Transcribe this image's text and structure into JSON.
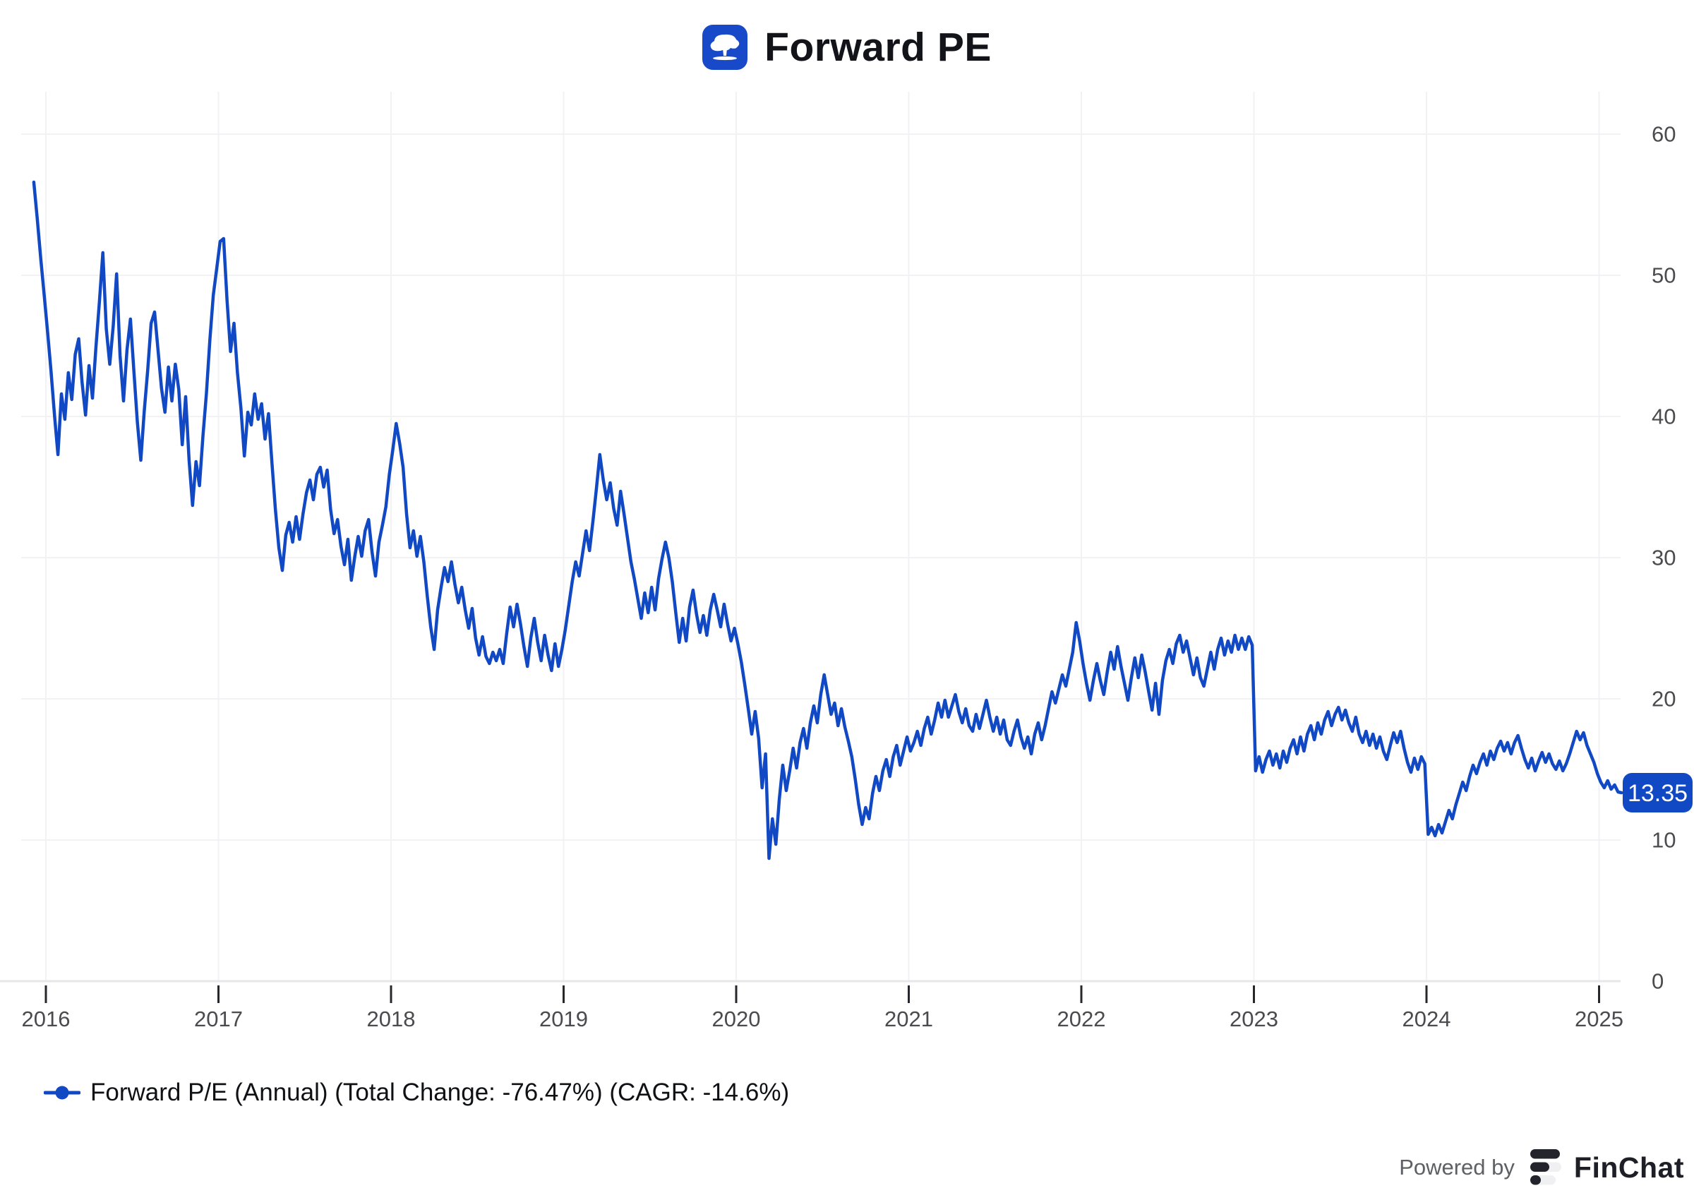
{
  "header": {
    "title": "Forward PE"
  },
  "legend": {
    "label": "Forward P/E (Annual) (Total Change: -76.47%) (CAGR: -14.6%)"
  },
  "footer": {
    "powered_by": "Powered by",
    "brand": "FinChat"
  },
  "chart_data": {
    "type": "line",
    "title": "Forward PE",
    "xlabel": "",
    "ylabel": "",
    "grid": true,
    "legend_position": "bottom-left",
    "y_axis_side": "right",
    "x_ticks": [
      2016,
      2017,
      2018,
      2019,
      2020,
      2021,
      2022,
      2023,
      2024,
      2025
    ],
    "y_ticks": [
      0,
      10,
      20,
      30,
      40,
      50,
      60
    ],
    "x_range": [
      2015.9,
      2025.22
    ],
    "y_range": [
      0,
      63
    ],
    "colors": {
      "grid": "#f2f2f5",
      "axis_line": "#e7e7ea",
      "tick": "#26272b",
      "axis_label": "#4b4b4f",
      "accent_blue": "#1148c4"
    },
    "series": [
      {
        "name": "Forward P/E (Annual) (Total Change: -76.47%) (CAGR: -14.6%)",
        "color": "#1148c4",
        "total_change_pct": -76.47,
        "cagr_pct": -14.6,
        "last_value_label": "13.35",
        "x_start": 2015.93,
        "x_step": 0.02,
        "values": [
          56.6,
          54.0,
          51.2,
          48.6,
          46.0,
          43.2,
          40.1,
          37.3,
          41.6,
          39.8,
          43.1,
          41.2,
          44.4,
          45.5,
          42.4,
          40.1,
          43.6,
          41.3,
          44.9,
          48.1,
          51.6,
          46.2,
          43.7,
          46.4,
          50.1,
          44.3,
          41.1,
          44.7,
          46.9,
          43.2,
          39.6,
          36.9,
          40.4,
          43.3,
          46.6,
          47.4,
          44.7,
          42.0,
          40.3,
          43.5,
          41.1,
          43.7,
          41.9,
          38.0,
          41.4,
          36.9,
          33.7,
          36.8,
          35.1,
          38.6,
          41.6,
          45.4,
          48.6,
          50.5,
          52.4,
          52.6,
          48.2,
          44.6,
          46.6,
          43.1,
          40.6,
          37.2,
          40.3,
          39.4,
          41.6,
          39.8,
          40.9,
          38.4,
          40.2,
          36.7,
          33.4,
          30.7,
          29.1,
          31.6,
          32.5,
          31.1,
          32.9,
          31.3,
          33.1,
          34.6,
          35.5,
          34.1,
          35.9,
          36.4,
          35.0,
          36.2,
          33.4,
          31.7,
          32.7,
          30.8,
          29.5,
          31.3,
          28.4,
          30.1,
          31.5,
          30.1,
          31.9,
          32.7,
          30.4,
          28.7,
          31.1,
          32.3,
          33.6,
          35.9,
          37.6,
          39.5,
          38.1,
          36.4,
          33.1,
          30.7,
          31.9,
          30.1,
          31.5,
          29.7,
          27.3,
          25.1,
          23.5,
          26.3,
          27.9,
          29.3,
          28.3,
          29.7,
          28.1,
          26.8,
          27.9,
          26.3,
          25.0,
          26.4,
          24.3,
          23.1,
          24.4,
          23.0,
          22.5,
          23.3,
          22.7,
          23.5,
          22.5,
          24.6,
          26.5,
          25.1,
          26.7,
          25.3,
          23.7,
          22.3,
          24.3,
          25.7,
          24.0,
          22.7,
          24.5,
          23.1,
          22.0,
          23.9,
          22.3,
          23.5,
          24.9,
          26.6,
          28.3,
          29.7,
          28.7,
          30.3,
          31.9,
          30.5,
          32.6,
          34.9,
          37.3,
          35.5,
          34.1,
          35.3,
          33.5,
          32.3,
          34.7,
          33.1,
          31.4,
          29.7,
          28.5,
          27.1,
          25.7,
          27.5,
          26.1,
          27.9,
          26.3,
          28.5,
          29.9,
          31.1,
          30.0,
          28.3,
          26.1,
          24.0,
          25.7,
          24.1,
          26.5,
          27.7,
          26.0,
          24.7,
          25.9,
          24.5,
          26.3,
          27.4,
          26.3,
          25.1,
          26.7,
          25.3,
          24.1,
          25.0,
          23.9,
          22.6,
          21.0,
          19.3,
          17.5,
          19.1,
          17.2,
          13.7,
          16.1,
          8.7,
          11.5,
          9.7,
          12.9,
          15.3,
          13.5,
          14.9,
          16.5,
          15.1,
          16.9,
          17.9,
          16.5,
          18.3,
          19.5,
          18.3,
          20.3,
          21.7,
          20.3,
          18.9,
          19.7,
          18.1,
          19.3,
          18.0,
          17.0,
          15.9,
          14.3,
          12.5,
          11.1,
          12.3,
          11.5,
          13.3,
          14.5,
          13.5,
          14.9,
          15.7,
          14.5,
          15.9,
          16.7,
          15.3,
          16.3,
          17.3,
          16.3,
          16.9,
          17.7,
          16.7,
          17.9,
          18.7,
          17.5,
          18.5,
          19.7,
          18.7,
          19.9,
          18.7,
          19.5,
          20.3,
          19.1,
          18.3,
          19.3,
          18.1,
          17.7,
          18.9,
          17.9,
          18.9,
          19.9,
          18.7,
          17.7,
          18.7,
          17.5,
          18.5,
          17.1,
          16.7,
          17.7,
          18.5,
          17.3,
          16.5,
          17.3,
          16.1,
          17.5,
          18.3,
          17.1,
          18.1,
          19.3,
          20.5,
          19.7,
          20.7,
          21.7,
          20.9,
          22.1,
          23.3,
          25.4,
          24.1,
          22.5,
          21.1,
          19.9,
          21.3,
          22.5,
          21.3,
          20.3,
          21.9,
          23.3,
          22.1,
          23.7,
          22.3,
          21.1,
          19.9,
          21.5,
          22.9,
          21.5,
          23.1,
          21.9,
          20.5,
          19.2,
          21.1,
          18.9,
          21.3,
          22.7,
          23.5,
          22.5,
          23.9,
          24.5,
          23.3,
          24.1,
          22.9,
          21.7,
          22.9,
          21.5,
          20.9,
          22.1,
          23.3,
          22.1,
          23.5,
          24.3,
          23.1,
          24.1,
          23.3,
          24.5,
          23.5,
          24.3,
          23.5,
          24.4,
          23.8,
          14.9,
          15.9,
          14.8,
          15.7,
          16.3,
          15.3,
          16.1,
          15.1,
          16.3,
          15.5,
          16.5,
          17.1,
          16.1,
          17.3,
          16.3,
          17.5,
          18.1,
          17.1,
          18.3,
          17.5,
          18.5,
          19.1,
          18.1,
          18.9,
          19.4,
          18.5,
          19.2,
          18.3,
          17.7,
          18.7,
          17.5,
          16.9,
          17.7,
          16.7,
          17.5,
          16.5,
          17.3,
          16.3,
          15.7,
          16.7,
          17.6,
          16.9,
          17.7,
          16.5,
          15.5,
          14.8,
          15.8,
          15.0,
          15.9,
          15.4,
          10.4,
          10.9,
          10.3,
          11.1,
          10.5,
          11.3,
          12.1,
          11.5,
          12.5,
          13.3,
          14.1,
          13.5,
          14.5,
          15.3,
          14.7,
          15.5,
          16.1,
          15.3,
          16.3,
          15.7,
          16.5,
          17.0,
          16.3,
          16.9,
          16.1,
          16.9,
          17.4,
          16.5,
          15.7,
          15.1,
          15.8,
          14.9,
          15.6,
          16.2,
          15.5,
          16.1,
          15.4,
          15.0,
          15.6,
          14.9,
          15.4,
          16.1,
          16.9,
          17.7,
          17.1,
          17.6,
          16.7,
          16.1,
          15.5,
          14.7,
          14.1,
          13.7,
          14.2,
          13.6,
          13.9,
          13.4,
          13.35
        ]
      }
    ]
  }
}
